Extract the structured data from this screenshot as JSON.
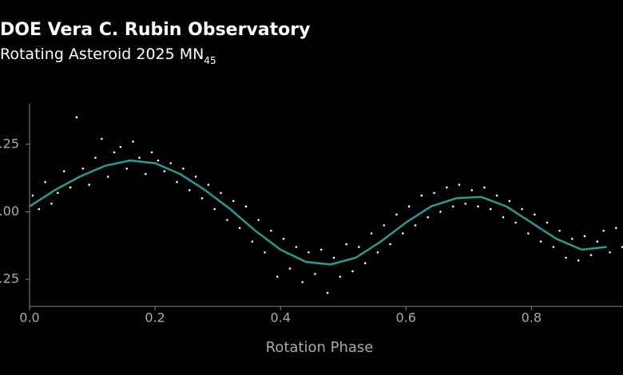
{
  "chart_data": {
    "type": "scatter",
    "title": "DOE Vera C. Rubin Observatory",
    "subtitle": "Rotating Asteroid 2025 MN",
    "subtitle_subscript": "45",
    "x_label": "Rotation Phase",
    "xlim": [
      0,
      0.946
    ],
    "xticks": [
      {
        "value": 0,
        "label": "0.0"
      },
      0.2,
      0.4,
      0.6,
      0.8
    ],
    "ylim": [
      -0.35,
      0.4
    ],
    "yticks": [
      {
        "value": -0.25,
        "label": ".25"
      },
      {
        "value": 0,
        "label": ".00"
      },
      {
        "value": 0.25,
        "label": ".25"
      }
    ],
    "series": [
      {
        "type": "scatter",
        "color": "#ffffff",
        "x": [
          0.005,
          0.015,
          0.025,
          0.035,
          0.045,
          0.055,
          0.065,
          0.075,
          0.085,
          0.095,
          0.105,
          0.115,
          0.125,
          0.135,
          0.145,
          0.155,
          0.165,
          0.175,
          0.185,
          0.195,
          0.205,
          0.215,
          0.225,
          0.235,
          0.245,
          0.255,
          0.265,
          0.275,
          0.285,
          0.295,
          0.305,
          0.315,
          0.325,
          0.335,
          0.345,
          0.355,
          0.365,
          0.375,
          0.385,
          0.395,
          0.405,
          0.415,
          0.425,
          0.435,
          0.445,
          0.455,
          0.465,
          0.475,
          0.485,
          0.495,
          0.505,
          0.515,
          0.525,
          0.535,
          0.545,
          0.555,
          0.565,
          0.575,
          0.585,
          0.595,
          0.605,
          0.615,
          0.625,
          0.635,
          0.645,
          0.655,
          0.665,
          0.675,
          0.685,
          0.695,
          0.705,
          0.715,
          0.725,
          0.735,
          0.745,
          0.755,
          0.765,
          0.775,
          0.785,
          0.795,
          0.805,
          0.815,
          0.825,
          0.835,
          0.845,
          0.855,
          0.865,
          0.875,
          0.885,
          0.895,
          0.905,
          0.915,
          0.925,
          0.935,
          0.945
        ],
        "values": [
          0.06,
          0.01,
          0.11,
          0.03,
          0.07,
          0.15,
          0.09,
          0.35,
          0.16,
          0.1,
          0.2,
          0.27,
          0.13,
          0.22,
          0.24,
          0.16,
          0.26,
          0.2,
          0.14,
          0.22,
          0.19,
          0.15,
          0.18,
          0.11,
          0.16,
          0.08,
          0.13,
          0.05,
          0.1,
          0.01,
          0.07,
          -0.03,
          0.04,
          -0.06,
          0.02,
          -0.11,
          -0.03,
          -0.15,
          -0.07,
          -0.24,
          -0.1,
          -0.21,
          -0.13,
          -0.26,
          -0.15,
          -0.23,
          -0.14,
          -0.3,
          -0.17,
          -0.24,
          -0.12,
          -0.22,
          -0.13,
          -0.19,
          -0.08,
          -0.15,
          -0.05,
          -0.12,
          -0.01,
          -0.08,
          0.02,
          -0.05,
          0.06,
          -0.02,
          0.07,
          0.0,
          0.09,
          0.02,
          0.1,
          0.03,
          0.08,
          0.02,
          0.09,
          0.01,
          0.06,
          -0.02,
          0.04,
          -0.04,
          0.01,
          -0.08,
          -0.01,
          -0.11,
          -0.04,
          -0.13,
          -0.07,
          -0.17,
          -0.1,
          -0.18,
          -0.09,
          -0.16,
          -0.11,
          -0.07,
          -0.15,
          -0.06,
          -0.13
        ]
      },
      {
        "type": "line",
        "color": "#2a9a98",
        "x": [
          0,
          0.04,
          0.08,
          0.12,
          0.16,
          0.2,
          0.24,
          0.28,
          0.32,
          0.36,
          0.4,
          0.44,
          0.48,
          0.52,
          0.56,
          0.6,
          0.64,
          0.68,
          0.72,
          0.76,
          0.8,
          0.84,
          0.88,
          0.92
        ],
        "values": [
          0.02,
          0.08,
          0.13,
          0.17,
          0.19,
          0.18,
          0.14,
          0.08,
          0.01,
          -0.07,
          -0.14,
          -0.185,
          -0.195,
          -0.17,
          -0.11,
          -0.04,
          0.02,
          0.05,
          0.055,
          0.02,
          -0.04,
          -0.1,
          -0.14,
          -0.13
        ]
      }
    ]
  }
}
